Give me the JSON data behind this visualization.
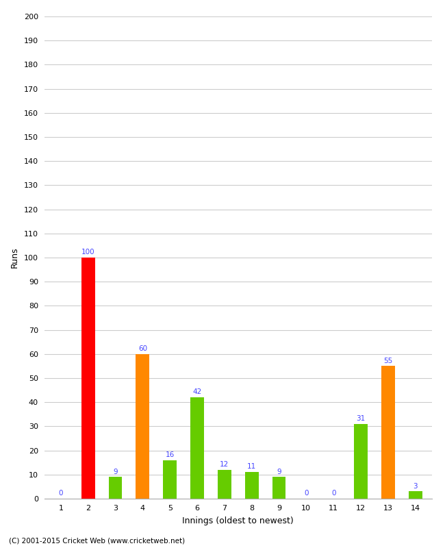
{
  "title": "",
  "xlabel": "Innings (oldest to newest)",
  "ylabel": "Runs",
  "categories": [
    "1",
    "2",
    "3",
    "4",
    "5",
    "6",
    "7",
    "8",
    "9",
    "10",
    "11",
    "12",
    "13",
    "14"
  ],
  "values": [
    0,
    100,
    9,
    60,
    16,
    42,
    12,
    11,
    9,
    0,
    0,
    31,
    55,
    3
  ],
  "bar_colors": [
    "#66cc00",
    "#ff0000",
    "#66cc00",
    "#ff8800",
    "#66cc00",
    "#66cc00",
    "#66cc00",
    "#66cc00",
    "#66cc00",
    "#66cc00",
    "#66cc00",
    "#66cc00",
    "#ff8800",
    "#66cc00"
  ],
  "ylim": [
    0,
    200
  ],
  "ytick_step": 10,
  "label_color": "#4444ff",
  "background_color": "#ffffff",
  "grid_color": "#cccccc",
  "footer": "(C) 2001-2015 Cricket Web (www.cricketweb.net)"
}
